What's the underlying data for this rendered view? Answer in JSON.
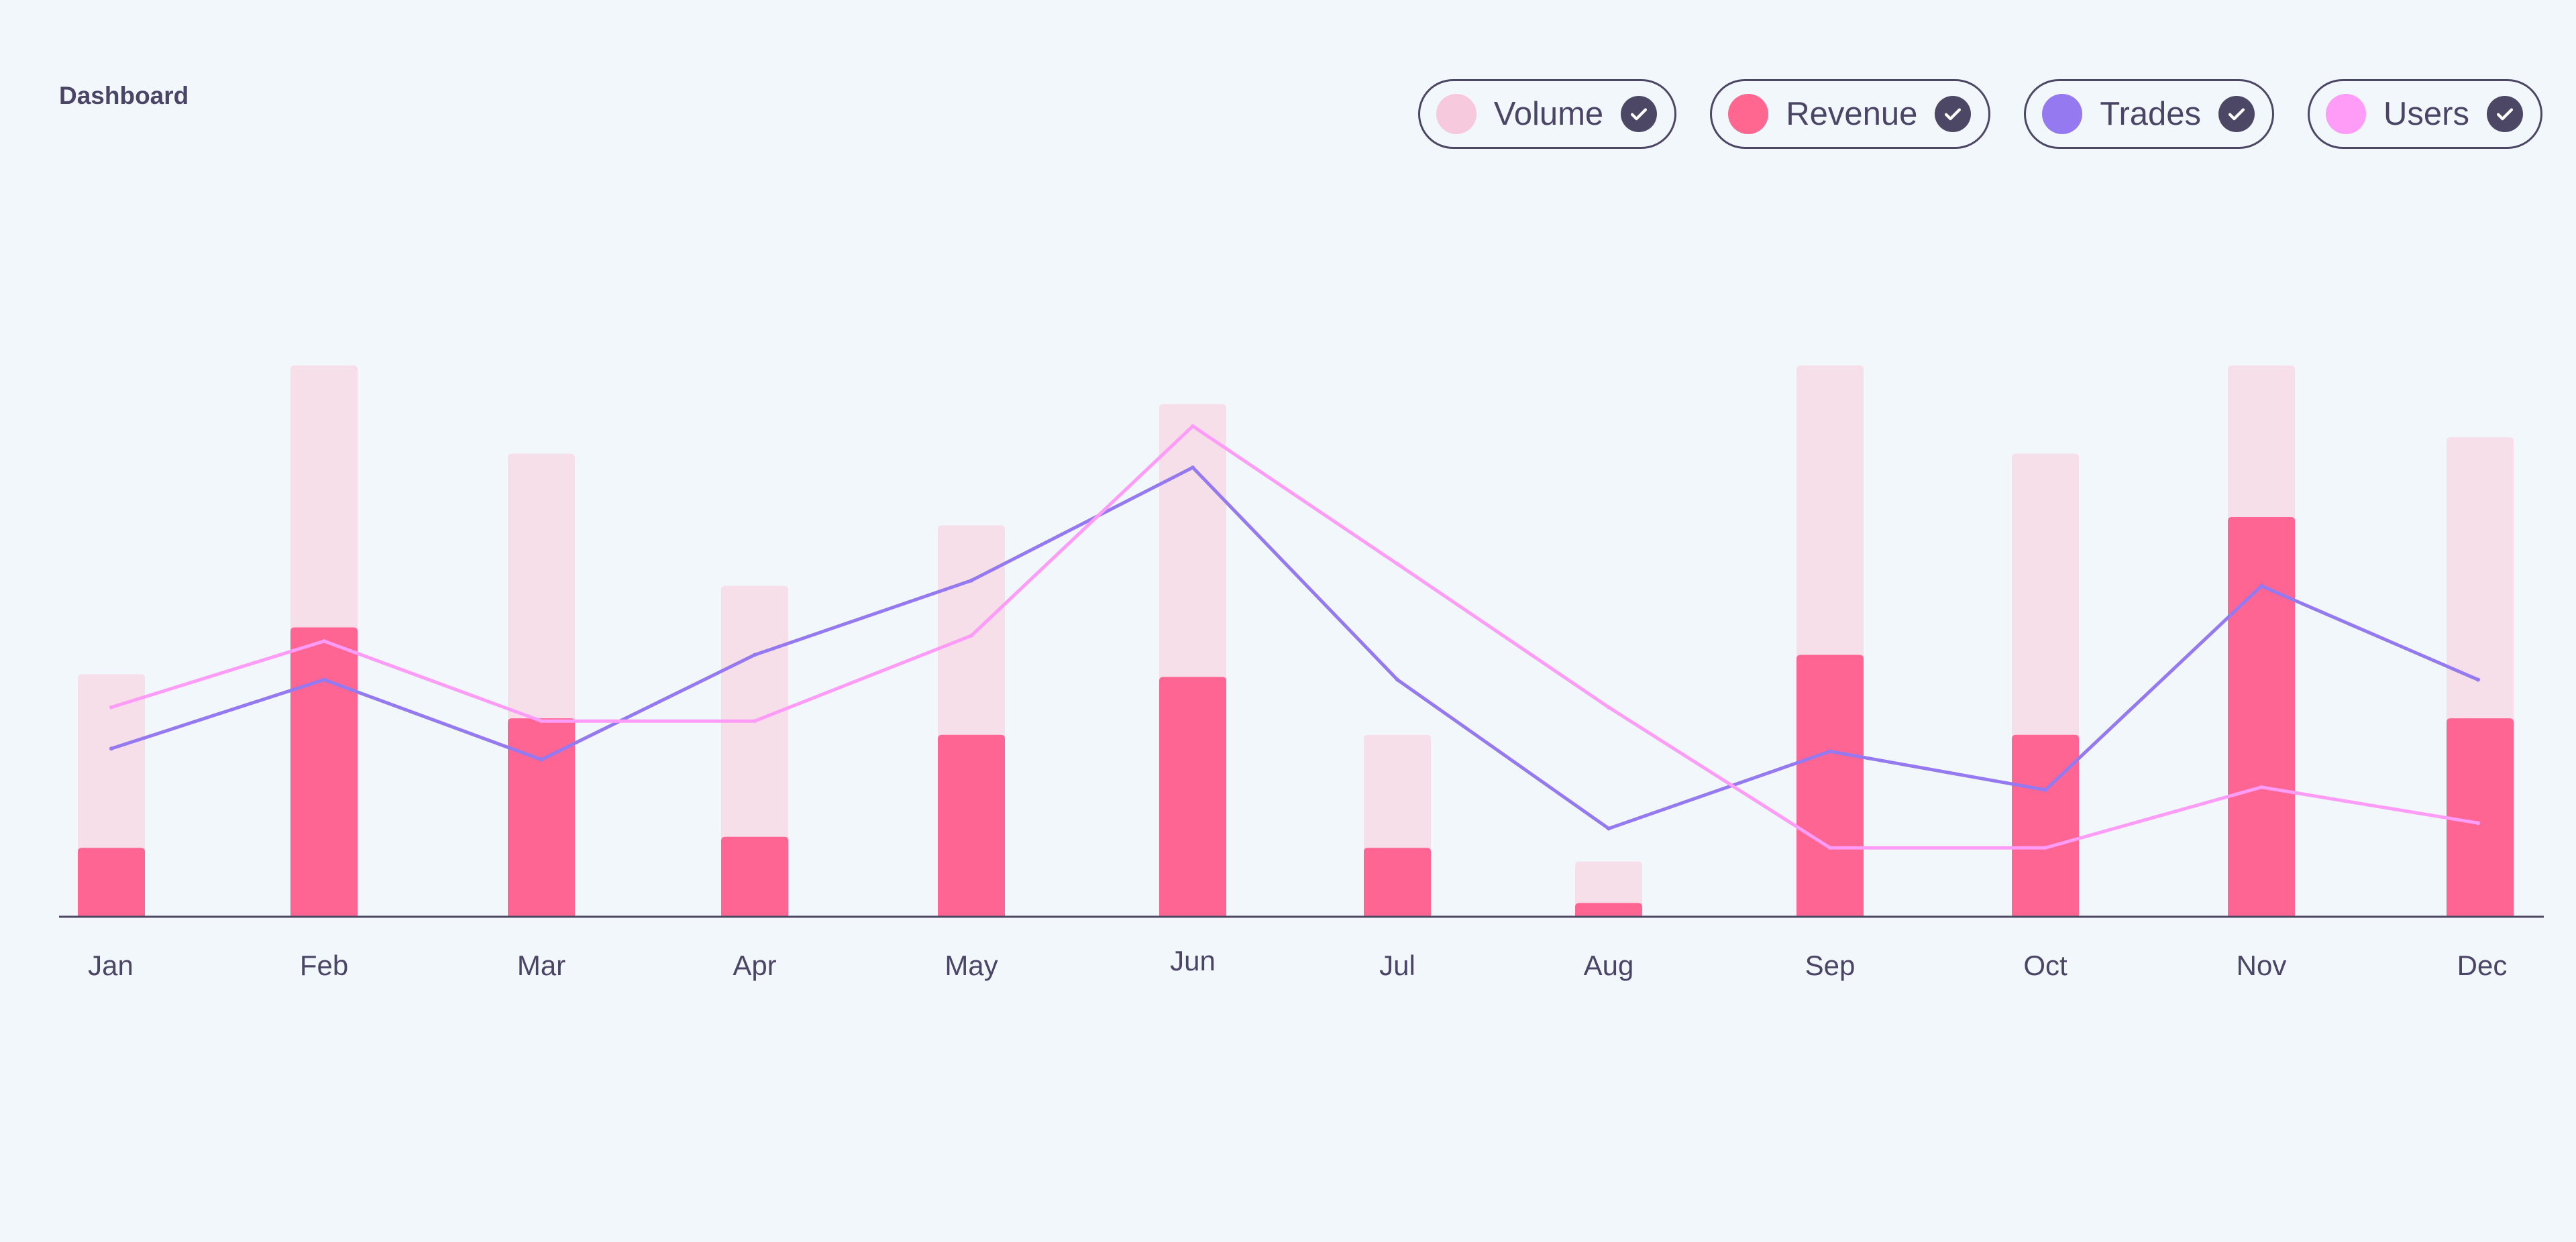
{
  "header": {
    "title": "Dashboard"
  },
  "legend": [
    {
      "key": "volume",
      "label": "Volume",
      "color": "#f7c9dc",
      "checked": true,
      "icon": "check-icon"
    },
    {
      "key": "revenue",
      "label": "Revenue",
      "color": "#ff6690",
      "checked": true,
      "icon": "check-icon"
    },
    {
      "key": "trades",
      "label": "Trades",
      "color": "#9479f0",
      "checked": true,
      "icon": "check-icon"
    },
    {
      "key": "users",
      "label": "Users",
      "color": "#ff9cf8",
      "checked": true,
      "icon": "check-icon"
    }
  ],
  "chart_data": {
    "type": "bar",
    "title": "",
    "xlabel": "",
    "ylabel": "",
    "ylim": [
      0,
      100
    ],
    "grid": false,
    "legend_position": "top-right",
    "categories": [
      "Jan",
      "Feb",
      "Mar",
      "Apr",
      "May",
      "Jun",
      "Jul",
      "Aug",
      "Sep",
      "Oct",
      "Nov",
      "Dec"
    ],
    "series": [
      {
        "name": "Volume",
        "kind": "bar",
        "color": "#f7dfe9",
        "values": [
          44,
          100,
          84,
          60,
          71,
          93,
          33,
          10,
          100,
          84,
          100,
          87
        ]
      },
      {
        "name": "Revenue",
        "kind": "bar",
        "color": "#ff6593",
        "values": [
          12.5,
          52.5,
          36,
          14.5,
          33,
          43.5,
          12.5,
          2.5,
          47.5,
          33,
          72.5,
          36
        ]
      },
      {
        "name": "Trades",
        "kind": "line",
        "color": "#9479f0",
        "values": [
          30.5,
          43,
          28.5,
          47.5,
          61,
          81.5,
          43,
          16,
          30,
          23,
          60,
          43
        ]
      },
      {
        "name": "Users",
        "kind": "line",
        "color": "#ff9cf8",
        "values": [
          38,
          50,
          35.5,
          35.5,
          51,
          89,
          64,
          38,
          12.5,
          12.5,
          23.5,
          17
        ]
      }
    ]
  }
}
